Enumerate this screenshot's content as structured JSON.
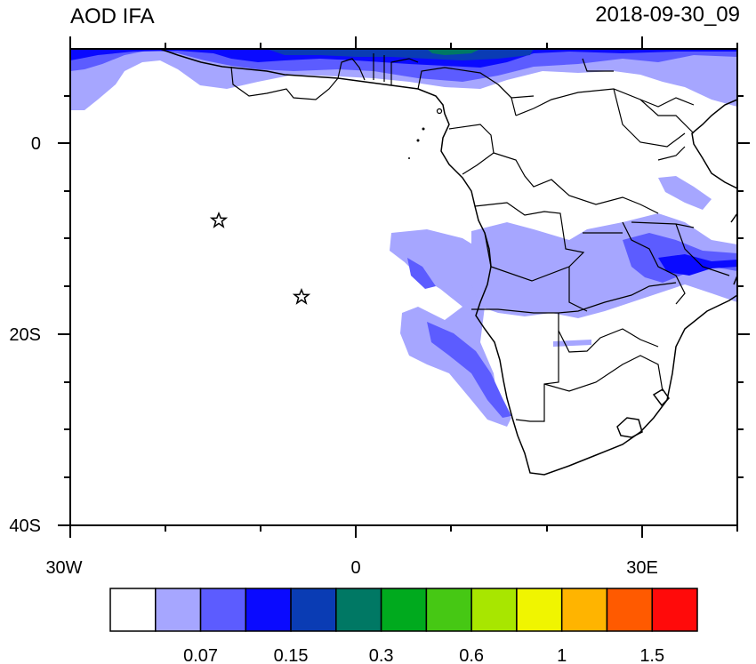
{
  "title_left": "AOD IFA",
  "title_right": "2018-09-30_09",
  "x_ticks": [
    "30W",
    "0",
    "30E"
  ],
  "y_ticks": [
    "0",
    "20S",
    "40S"
  ],
  "colorbar": {
    "colors": [
      "#ffffff",
      "#a6a6ff",
      "#5c5cff",
      "#0a0aff",
      "#0a3cb4",
      "#007864",
      "#00aa1e",
      "#46c814",
      "#a8e600",
      "#f0f500",
      "#ffb400",
      "#ff5a00",
      "#ff0a0a"
    ],
    "labels": [
      "0.07",
      "0.15",
      "0.3",
      "0.6",
      "1",
      "1.5"
    ]
  },
  "markers": [
    "star",
    "star"
  ]
}
